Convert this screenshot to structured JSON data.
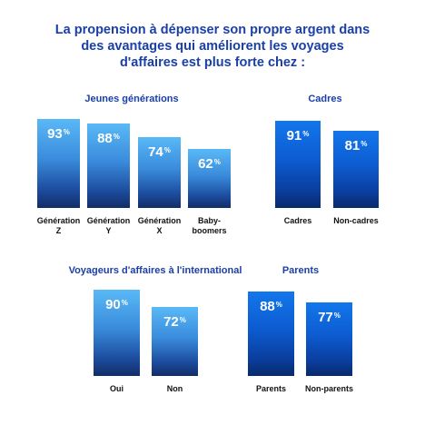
{
  "title_lines": [
    "La propension à dépenser son propre argent dans",
    "des avantages qui améliorent les voyages",
    "d'affaires est plus forte chez :"
  ],
  "chart_data": [
    {
      "type": "bar",
      "title": "Jeunes générations",
      "categories": [
        "Génération\nZ",
        "Génération\nY",
        "Génération\nX",
        "Baby-\nboomers"
      ],
      "values": [
        93,
        88,
        74,
        62
      ],
      "unit": "%",
      "style": "light"
    },
    {
      "type": "bar",
      "title": "Cadres",
      "categories": [
        "Cadres",
        "Non-cadres"
      ],
      "values": [
        91,
        81
      ],
      "unit": "%",
      "style": "dark"
    },
    {
      "type": "bar",
      "title": "Voyageurs d'affaires à l'international",
      "categories": [
        "Oui",
        "Non"
      ],
      "values": [
        90,
        72
      ],
      "unit": "%",
      "style": "light"
    },
    {
      "type": "bar",
      "title": "Parents",
      "categories": [
        "Parents",
        "Non-parents"
      ],
      "values": [
        88,
        77
      ],
      "unit": "%",
      "style": "dark"
    }
  ]
}
